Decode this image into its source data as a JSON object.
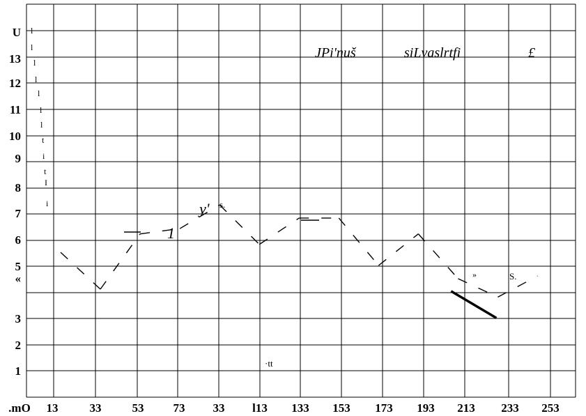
{
  "chart_data": {
    "type": "line",
    "title_parts": [
      "JPi'nuš",
      "siLvaslrtfi",
      "£"
    ],
    "xlabel": "",
    "ylabel": "",
    "x_tick_labels": [
      ".mO",
      "13",
      "33",
      "53",
      "73",
      "33",
      "l13",
      "133",
      "153",
      "173",
      "193",
      "213",
      "233",
      "253"
    ],
    "y_tick_labels": [
      "U",
      "13",
      "12",
      "11",
      "10",
      "9",
      "8",
      "7",
      "6",
      "5",
      "«",
      "3",
      "2",
      "1"
    ],
    "grid": true,
    "left_scribbles": [
      "l",
      "l",
      "l",
      "l",
      "l",
      "l",
      "l",
      "t",
      "i",
      "t",
      "I",
      "i"
    ],
    "annotations": [
      "y'",
      "s.",
      "1",
      "·tt",
      "»",
      "S."
    ],
    "series": [
      {
        "x": [
          13,
          33,
          53,
          73,
          93,
          113,
          133,
          153,
          173,
          193,
          213,
          233,
          253
        ],
        "y": [
          5.5,
          4.1,
          6.2,
          6.4,
          7.3,
          5.8,
          6.8,
          6.8,
          5.0,
          6.2,
          4.5,
          3.8,
          4.6
        ]
      }
    ]
  }
}
